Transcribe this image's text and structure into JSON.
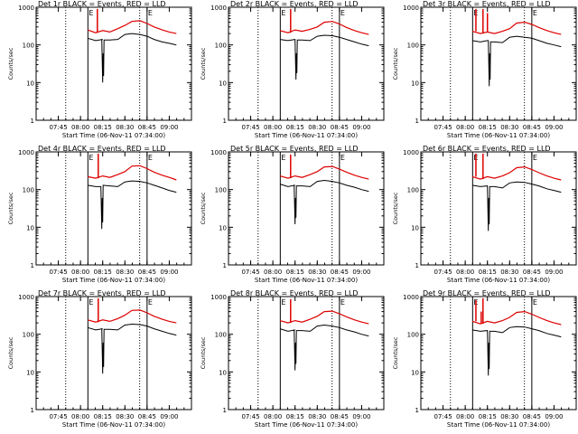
{
  "chart_data": {
    "type": "line",
    "layout": "3x3 grid of small-multiple plots",
    "y_scale": "log",
    "ylim": [
      1,
      1000
    ],
    "y_ticks": [
      "1",
      "10",
      "100",
      "1000"
    ],
    "xlim": [
      "07:30",
      "09:15"
    ],
    "x_ticks": [
      "07:45",
      "08:00",
      "08:15",
      "08:30",
      "08:45",
      "09:00"
    ],
    "ylabel": "Counts/sec",
    "xlabel": "Start Time (06-Nov-11 07:34:00)",
    "colors": {
      "events": "#000000",
      "lld": "#dd0000",
      "axes": "#000000"
    },
    "markers": {
      "dotted_vertical_times": [
        "07:50",
        "08:40"
      ],
      "solid_vertical_times": [
        "08:05",
        "08:45"
      ],
      "E_flag_times": [
        "08:05",
        "08:45"
      ],
      "E_flag_text": "E"
    },
    "panels": [
      {
        "title": "Det 1r BLACK = Events, RED = LLD",
        "lld": [
          [
            8.08,
            250
          ],
          [
            8.17,
            210
          ],
          [
            8.25,
            240
          ],
          [
            8.33,
            220
          ],
          [
            8.42,
            270
          ],
          [
            8.5,
            330
          ],
          [
            8.58,
            420
          ],
          [
            8.67,
            440
          ],
          [
            8.75,
            370
          ],
          [
            8.83,
            300
          ],
          [
            8.92,
            250
          ],
          [
            9.0,
            220
          ],
          [
            9.08,
            200
          ]
        ],
        "events": [
          [
            8.08,
            150
          ],
          [
            8.17,
            130
          ],
          [
            8.25,
            140
          ],
          [
            8.33,
            135
          ],
          [
            8.42,
            140
          ],
          [
            8.5,
            190
          ],
          [
            8.58,
            200
          ],
          [
            8.67,
            190
          ],
          [
            8.75,
            170
          ],
          [
            8.83,
            140
          ],
          [
            8.92,
            120
          ],
          [
            9.0,
            110
          ],
          [
            9.08,
            100
          ]
        ],
        "spikes": [
          [
            8.19,
            900
          ]
        ],
        "dip": [
          8.25,
          10
        ]
      },
      {
        "title": "Det 2r BLACK = Events, RED = LLD",
        "lld": [
          [
            8.08,
            240
          ],
          [
            8.17,
            210
          ],
          [
            8.25,
            250
          ],
          [
            8.33,
            230
          ],
          [
            8.42,
            260
          ],
          [
            8.5,
            300
          ],
          [
            8.58,
            400
          ],
          [
            8.67,
            420
          ],
          [
            8.75,
            360
          ],
          [
            8.83,
            290
          ],
          [
            8.92,
            240
          ],
          [
            9.0,
            210
          ],
          [
            9.08,
            190
          ]
        ],
        "events": [
          [
            8.08,
            140
          ],
          [
            8.17,
            130
          ],
          [
            8.25,
            140
          ],
          [
            8.33,
            135
          ],
          [
            8.42,
            130
          ],
          [
            8.5,
            170
          ],
          [
            8.58,
            180
          ],
          [
            8.67,
            175
          ],
          [
            8.75,
            160
          ],
          [
            8.83,
            140
          ],
          [
            8.92,
            120
          ],
          [
            9.0,
            105
          ],
          [
            9.08,
            95
          ]
        ],
        "spikes": [
          [
            8.2,
            900
          ]
        ],
        "dip": [
          8.26,
          12
        ]
      },
      {
        "title": "Det 3r BLACK = Events, RED = LLD",
        "lld": [
          [
            8.08,
            230
          ],
          [
            8.17,
            200
          ],
          [
            8.25,
            220
          ],
          [
            8.33,
            200
          ],
          [
            8.42,
            230
          ],
          [
            8.5,
            270
          ],
          [
            8.58,
            380
          ],
          [
            8.67,
            400
          ],
          [
            8.75,
            350
          ],
          [
            8.83,
            290
          ],
          [
            8.92,
            240
          ],
          [
            9.0,
            210
          ],
          [
            9.08,
            190
          ]
        ],
        "events": [
          [
            8.08,
            130
          ],
          [
            8.17,
            120
          ],
          [
            8.25,
            130
          ],
          [
            8.33,
            120
          ],
          [
            8.42,
            115
          ],
          [
            8.5,
            160
          ],
          [
            8.58,
            170
          ],
          [
            8.67,
            160
          ],
          [
            8.75,
            150
          ],
          [
            8.83,
            130
          ],
          [
            8.92,
            110
          ],
          [
            9.0,
            100
          ],
          [
            9.08,
            90
          ]
        ],
        "spikes": [
          [
            8.12,
            900
          ],
          [
            8.2,
            900
          ],
          [
            8.25,
            700
          ]
        ],
        "dip": [
          8.27,
          8
        ]
      },
      {
        "title": "Det 4r BLACK = Events, RED = LLD",
        "lld": [
          [
            8.08,
            220
          ],
          [
            8.17,
            200
          ],
          [
            8.25,
            230
          ],
          [
            8.33,
            210
          ],
          [
            8.42,
            250
          ],
          [
            8.5,
            300
          ],
          [
            8.58,
            420
          ],
          [
            8.67,
            430
          ],
          [
            8.75,
            360
          ],
          [
            8.83,
            290
          ],
          [
            8.92,
            240
          ],
          [
            9.0,
            210
          ],
          [
            9.08,
            180
          ]
        ],
        "events": [
          [
            8.08,
            130
          ],
          [
            8.17,
            120
          ],
          [
            8.25,
            130
          ],
          [
            8.33,
            125
          ],
          [
            8.42,
            120
          ],
          [
            8.5,
            160
          ],
          [
            8.58,
            170
          ],
          [
            8.67,
            165
          ],
          [
            8.75,
            150
          ],
          [
            8.83,
            130
          ],
          [
            8.92,
            110
          ],
          [
            9.0,
            95
          ],
          [
            9.08,
            85
          ]
        ],
        "spikes": [
          [
            8.2,
            900
          ]
        ],
        "dip": [
          8.24,
          9
        ]
      },
      {
        "title": "Det 5r BLACK = Events, RED = LLD",
        "lld": [
          [
            8.08,
            230
          ],
          [
            8.17,
            200
          ],
          [
            8.25,
            230
          ],
          [
            8.33,
            210
          ],
          [
            8.42,
            250
          ],
          [
            8.5,
            300
          ],
          [
            8.58,
            400
          ],
          [
            8.67,
            410
          ],
          [
            8.75,
            350
          ],
          [
            8.83,
            290
          ],
          [
            8.92,
            240
          ],
          [
            9.0,
            210
          ],
          [
            9.08,
            190
          ]
        ],
        "events": [
          [
            8.08,
            140
          ],
          [
            8.17,
            120
          ],
          [
            8.25,
            130
          ],
          [
            8.33,
            125
          ],
          [
            8.42,
            120
          ],
          [
            8.5,
            165
          ],
          [
            8.58,
            175
          ],
          [
            8.67,
            165
          ],
          [
            8.75,
            150
          ],
          [
            8.83,
            130
          ],
          [
            8.92,
            115
          ],
          [
            9.0,
            100
          ],
          [
            9.08,
            90
          ]
        ],
        "spikes": [
          [
            8.2,
            850
          ]
        ],
        "dip": [
          8.25,
          12
        ]
      },
      {
        "title": "Det 6r BLACK = Events, RED = LLD",
        "lld": [
          [
            8.08,
            220
          ],
          [
            8.17,
            190
          ],
          [
            8.25,
            220
          ],
          [
            8.33,
            200
          ],
          [
            8.42,
            230
          ],
          [
            8.5,
            280
          ],
          [
            8.58,
            380
          ],
          [
            8.67,
            400
          ],
          [
            8.75,
            340
          ],
          [
            8.83,
            280
          ],
          [
            8.92,
            230
          ],
          [
            9.0,
            200
          ],
          [
            9.08,
            180
          ]
        ],
        "events": [
          [
            8.08,
            130
          ],
          [
            8.17,
            120
          ],
          [
            8.25,
            125
          ],
          [
            8.33,
            120
          ],
          [
            8.42,
            110
          ],
          [
            8.5,
            150
          ],
          [
            8.58,
            160
          ],
          [
            8.67,
            155
          ],
          [
            8.75,
            140
          ],
          [
            8.83,
            125
          ],
          [
            8.92,
            105
          ],
          [
            9.0,
            95
          ],
          [
            9.08,
            85
          ]
        ],
        "spikes": [
          [
            8.12,
            900
          ],
          [
            8.2,
            900
          ]
        ],
        "dip": [
          8.26,
          8
        ]
      },
      {
        "title": "Det 7r BLACK = Events, RED = LLD",
        "lld": [
          [
            8.08,
            240
          ],
          [
            8.17,
            210
          ],
          [
            8.25,
            240
          ],
          [
            8.33,
            220
          ],
          [
            8.42,
            260
          ],
          [
            8.5,
            320
          ],
          [
            8.58,
            430
          ],
          [
            8.67,
            440
          ],
          [
            8.75,
            370
          ],
          [
            8.83,
            300
          ],
          [
            8.92,
            250
          ],
          [
            9.0,
            220
          ],
          [
            9.08,
            200
          ]
        ],
        "events": [
          [
            8.08,
            150
          ],
          [
            8.17,
            130
          ],
          [
            8.25,
            140
          ],
          [
            8.33,
            135
          ],
          [
            8.42,
            130
          ],
          [
            8.5,
            175
          ],
          [
            8.58,
            185
          ],
          [
            8.67,
            180
          ],
          [
            8.75,
            165
          ],
          [
            8.83,
            140
          ],
          [
            8.92,
            120
          ],
          [
            9.0,
            105
          ],
          [
            9.08,
            95
          ]
        ],
        "spikes": [
          [
            8.2,
            900
          ]
        ],
        "dip": [
          8.25,
          9
        ]
      },
      {
        "title": "Det 8r BLACK = Events, RED = LLD",
        "lld": [
          [
            8.08,
            230
          ],
          [
            8.17,
            200
          ],
          [
            8.25,
            230
          ],
          [
            8.33,
            210
          ],
          [
            8.42,
            250
          ],
          [
            8.5,
            300
          ],
          [
            8.58,
            400
          ],
          [
            8.67,
            410
          ],
          [
            8.75,
            350
          ],
          [
            8.83,
            290
          ],
          [
            8.92,
            240
          ],
          [
            9.0,
            210
          ],
          [
            9.08,
            190
          ]
        ],
        "events": [
          [
            8.08,
            140
          ],
          [
            8.17,
            120
          ],
          [
            8.25,
            130
          ],
          [
            8.33,
            125
          ],
          [
            8.42,
            120
          ],
          [
            8.5,
            165
          ],
          [
            8.58,
            175
          ],
          [
            8.67,
            165
          ],
          [
            8.75,
            150
          ],
          [
            8.83,
            130
          ],
          [
            8.92,
            115
          ],
          [
            9.0,
            100
          ],
          [
            9.08,
            90
          ]
        ],
        "spikes": [
          [
            8.2,
            850
          ]
        ],
        "dip": [
          8.25,
          11
        ]
      },
      {
        "title": "Det 9r BLACK = Events, RED = LLD",
        "lld": [
          [
            8.08,
            220
          ],
          [
            8.17,
            190
          ],
          [
            8.25,
            220
          ],
          [
            8.33,
            200
          ],
          [
            8.42,
            230
          ],
          [
            8.5,
            280
          ],
          [
            8.58,
            380
          ],
          [
            8.67,
            400
          ],
          [
            8.75,
            340
          ],
          [
            8.83,
            280
          ],
          [
            8.92,
            230
          ],
          [
            9.0,
            200
          ],
          [
            9.08,
            180
          ]
        ],
        "events": [
          [
            8.08,
            130
          ],
          [
            8.17,
            120
          ],
          [
            8.25,
            125
          ],
          [
            8.33,
            120
          ],
          [
            8.42,
            110
          ],
          [
            8.5,
            150
          ],
          [
            8.58,
            160
          ],
          [
            8.67,
            155
          ],
          [
            8.75,
            140
          ],
          [
            8.83,
            125
          ],
          [
            8.92,
            105
          ],
          [
            9.0,
            95
          ],
          [
            9.08,
            85
          ]
        ],
        "spikes": [
          [
            8.12,
            800
          ],
          [
            8.18,
            400
          ],
          [
            8.2,
            900
          ]
        ],
        "dip": [
          8.26,
          8
        ]
      }
    ]
  }
}
